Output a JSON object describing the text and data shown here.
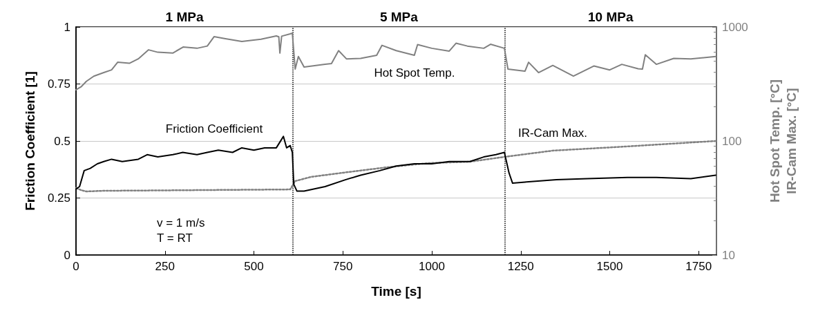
{
  "chart_data": {
    "type": "line",
    "xlabel": "Time [s]",
    "ylabel": "Friction Coefficient [1]",
    "y2label": "Hot Spot Temp. [°C]\nIR-Cam Max. [°C]",
    "xlim": [
      0,
      1800
    ],
    "xticks": [
      0,
      250,
      500,
      750,
      1000,
      1250,
      1500,
      1750
    ],
    "ylim": [
      0,
      1
    ],
    "yticks": [
      0,
      0.25,
      0.5,
      0.75,
      1
    ],
    "y2lim": [
      10,
      1000
    ],
    "y2ticks": [
      10,
      100,
      1000
    ],
    "log": "y2",
    "grid": "y",
    "legend": false,
    "marker": "none",
    "ref_lines": [
      {
        "axis": "x",
        "value": 610,
        "color": "#000000",
        "line_style": "dotted"
      },
      {
        "axis": "x",
        "value": 1205,
        "color": "#000000",
        "line_style": "dotted"
      }
    ],
    "annotations": [
      "1 MPa",
      "5 MPa",
      "10 MPa",
      "v = 1 m/s",
      "T = RT"
    ],
    "series": [
      {
        "name": "Friction Coefficient",
        "color": "#000000",
        "line_style": "solid",
        "x": [
          0,
          10,
          23,
          40,
          60,
          78,
          100,
          130,
          175,
          200,
          230,
          272,
          300,
          340,
          369,
          400,
          440,
          466,
          500,
          530,
          563,
          583,
          592,
          602,
          608,
          612,
          621,
          641,
          700,
          757,
          800,
          854,
          900,
          951,
          1000,
          1049,
          1080,
          1107,
          1146,
          1180,
          1204,
          1217,
          1227,
          1262,
          1350,
          1437,
          1550,
          1631,
          1728,
          1798
        ],
        "values": [
          0.29,
          0.3,
          0.37,
          0.38,
          0.4,
          0.41,
          0.42,
          0.41,
          0.42,
          0.44,
          0.43,
          0.44,
          0.45,
          0.44,
          0.45,
          0.46,
          0.45,
          0.47,
          0.46,
          0.47,
          0.47,
          0.52,
          0.47,
          0.48,
          0.45,
          0.31,
          0.28,
          0.28,
          0.3,
          0.33,
          0.35,
          0.37,
          0.39,
          0.4,
          0.4,
          0.41,
          0.41,
          0.41,
          0.43,
          0.44,
          0.45,
          0.36,
          0.315,
          0.32,
          0.33,
          0.335,
          0.34,
          0.34,
          0.335,
          0.35
        ]
      },
      {
        "name": "Hot Spot Temp.",
        "color": "#808080",
        "line_style": "solid",
        "axis": "y2",
        "x": [
          0,
          15,
          29,
          50,
          78,
          100,
          117,
          150,
          175,
          204,
          230,
          272,
          301,
          340,
          369,
          388,
          420,
          466,
          520,
          563,
          570,
          573,
          578,
          602,
          608,
          616,
          625,
          641,
          700,
          718,
          738,
          760,
          800,
          845,
          860,
          900,
          951,
          960,
          1000,
          1049,
          1068,
          1100,
          1146,
          1165,
          1204,
          1214,
          1262,
          1272,
          1300,
          1340,
          1398,
          1456,
          1500,
          1534,
          1580,
          1592,
          1600,
          1631,
          1680,
          1728,
          1798
        ],
        "values": [
          281,
          300,
          333,
          370,
          398,
          420,
          490,
          480,
          525,
          630,
          600,
          590,
          667,
          650,
          680,
          822,
          790,
          746,
          780,
          834,
          820,
          590,
          830,
          870,
          882,
          427,
          550,
          445,
          470,
          478,
          620,
          525,
          530,
          565,
          690,
          620,
          565,
          700,
          650,
          614,
          720,
          680,
          650,
          705,
          650,
          427,
          410,
          490,
          398,
          460,
          371,
          455,
          420,
          470,
          430,
          427,
          570,
          470,
          530,
          525,
          550
        ]
      },
      {
        "name": "IR-Cam Max.",
        "color": "#808080",
        "line_style": "dotted",
        "axis": "y2",
        "x": [
          0,
          15,
          29,
          78,
          200,
          400,
          602,
          616,
          660,
          757,
          874,
          990,
          1107,
          1205,
          1340,
          1534,
          1798
        ],
        "values": [
          38.7,
          37,
          36.1,
          36.6,
          36.8,
          37.2,
          37.6,
          44.5,
          48.4,
          53,
          58.8,
          64,
          65.8,
          72.6,
          82.3,
          89,
          100
        ]
      }
    ]
  }
}
